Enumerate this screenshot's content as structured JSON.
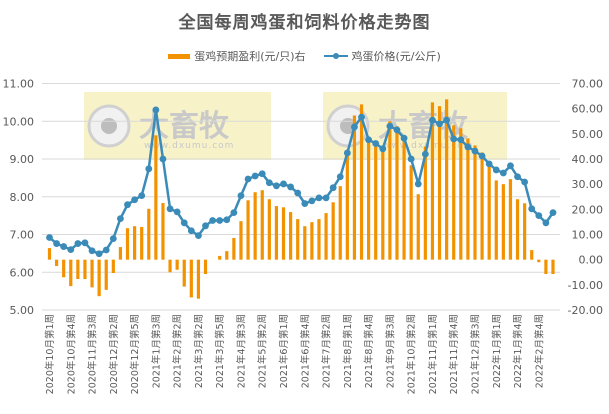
{
  "chart_data": {
    "type": "bar+line",
    "title": "全国每周鸡蛋和饲料价格走势图",
    "legend_position": "top",
    "grid": true,
    "watermark": {
      "brand": "大畜牧",
      "url": "www.dxumu.com"
    },
    "x_tick_labels": [
      "2020年10月第1周",
      "2020年10月第4周",
      "2020年11月第3周",
      "2020年12月第2周",
      "2020年12月第5周",
      "2021年1月第3周",
      "2021年2月第2周",
      "2021年3月第2周",
      "2021年3月第5周",
      "2021年4月第3周",
      "2021年5月第2周",
      "2021年6月第1周",
      "2021年6月第4周",
      "2021年7月第2周",
      "2021年8月第1周",
      "2021年8月第4周",
      "2021年9月第3周",
      "2021年10月第2周",
      "2021年11月第1周",
      "2021年11月第4周",
      "2021年12月第3周",
      "2022年1月第1周",
      "2022年1月第4周",
      "2022年2月第4周"
    ],
    "x_tick_every": 3,
    "left_axis": {
      "ylim": [
        5,
        11
      ],
      "ticks": [
        "5.00",
        "6.00",
        "7.00",
        "8.00",
        "9.00",
        "10.00",
        "11.00"
      ]
    },
    "right_axis": {
      "ylim": [
        -20,
        70
      ],
      "ticks": [
        "-20.00",
        "-10.00",
        "0.00",
        "10.00",
        "20.00",
        "30.00",
        "40.00",
        "50.00",
        "60.00",
        "70.00"
      ]
    },
    "series": [
      {
        "name": "蛋鸡预期盈利(元/只)右",
        "type": "bar",
        "axis": "right",
        "color": "#F39200",
        "values": [
          4.6,
          -2.5,
          -7,
          -10.5,
          -7.7,
          -7.7,
          -11,
          -14.5,
          -12,
          -5.3,
          5.0,
          12.5,
          13.3,
          13.0,
          20.2,
          49.4,
          22.5,
          -5,
          -4,
          -10.7,
          -15,
          -15.5,
          -5.7,
          0,
          1.5,
          3.4,
          8.6,
          15.3,
          23.6,
          26.8,
          27.6,
          24,
          21.3,
          20.8,
          18.9,
          16.1,
          13.3,
          14.9,
          16.1,
          18.5,
          22.8,
          29.2,
          42.6,
          57.3,
          61.7,
          47.4,
          45.4,
          45,
          55,
          53,
          49.4,
          37.5,
          26,
          45,
          62.5,
          61,
          63.7,
          53.4,
          52.2,
          48.2,
          45.4,
          42.6,
          38.3,
          31.5,
          30,
          32,
          24,
          22.4,
          3.8,
          -1,
          -5.7,
          -5.7
        ]
      },
      {
        "name": "鸡蛋价格(元/公斤)",
        "type": "line",
        "axis": "left",
        "color": "#3B8BB8",
        "values": [
          6.92,
          6.76,
          6.68,
          6.6,
          6.76,
          6.78,
          6.57,
          6.49,
          6.59,
          6.89,
          7.42,
          7.79,
          7.92,
          8.03,
          8.74,
          10.3,
          9.0,
          7.68,
          7.6,
          7.31,
          7.1,
          6.97,
          7.23,
          7.37,
          7.37,
          7.39,
          7.58,
          8.03,
          8.47,
          8.55,
          8.61,
          8.37,
          8.29,
          8.34,
          8.26,
          8.1,
          7.82,
          7.89,
          7.97,
          7.97,
          8.24,
          8.53,
          9.16,
          9.85,
          10.11,
          9.51,
          9.41,
          9.27,
          9.87,
          9.77,
          9.55,
          9.0,
          8.34,
          9.13,
          10.03,
          9.93,
          10.03,
          9.53,
          9.51,
          9.32,
          9.21,
          9.08,
          8.87,
          8.71,
          8.63,
          8.82,
          8.53,
          8.39,
          7.68,
          7.5,
          7.31,
          7.58
        ]
      }
    ]
  },
  "legend": {
    "bar_label": "蛋鸡预期盈利(元/只)右",
    "line_label": "鸡蛋价格(元/公斤)"
  }
}
